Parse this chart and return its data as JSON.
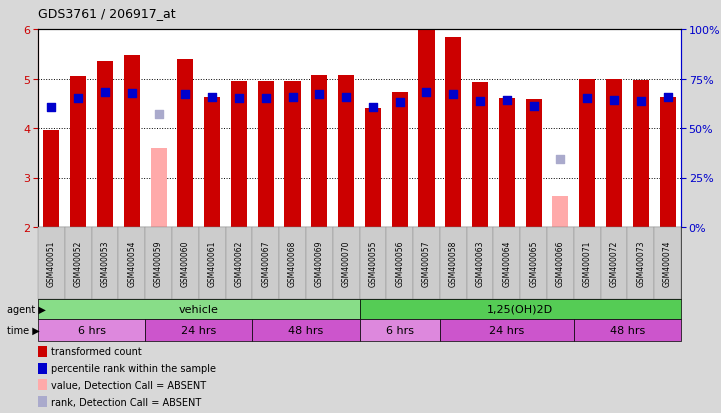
{
  "title": "GDS3761 / 206917_at",
  "ylim_left": [
    2,
    6
  ],
  "ylim_right": [
    0,
    100
  ],
  "yticks_left": [
    2,
    3,
    4,
    5,
    6
  ],
  "yticks_right": [
    0,
    25,
    50,
    75,
    100
  ],
  "ytick_labels_right": [
    "0%",
    "25%",
    "50%",
    "75%",
    "100%"
  ],
  "samples": [
    "GSM400051",
    "GSM400052",
    "GSM400053",
    "GSM400054",
    "GSM400059",
    "GSM400060",
    "GSM400061",
    "GSM400062",
    "GSM400067",
    "GSM400068",
    "GSM400069",
    "GSM400070",
    "GSM400055",
    "GSM400056",
    "GSM400057",
    "GSM400058",
    "GSM400063",
    "GSM400064",
    "GSM400065",
    "GSM400066",
    "GSM400071",
    "GSM400072",
    "GSM400073",
    "GSM400074"
  ],
  "bar_values": [
    3.95,
    5.05,
    5.35,
    5.48,
    3.6,
    5.4,
    4.62,
    4.95,
    4.95,
    4.95,
    5.08,
    5.08,
    4.4,
    4.72,
    6.02,
    5.84,
    4.93,
    4.6,
    4.58,
    2.63,
    5.0,
    5.0,
    4.96,
    4.62
  ],
  "bar_absent": [
    false,
    false,
    false,
    false,
    true,
    false,
    false,
    false,
    false,
    false,
    false,
    false,
    false,
    false,
    false,
    false,
    false,
    false,
    false,
    true,
    false,
    false,
    false,
    false
  ],
  "rank_values": [
    4.43,
    4.6,
    4.72,
    4.7,
    4.28,
    4.68,
    4.62,
    4.6,
    4.6,
    4.62,
    4.68,
    4.62,
    4.43,
    4.52,
    4.72,
    4.68,
    4.55,
    4.57,
    4.45,
    3.38,
    4.6,
    4.57,
    4.55,
    4.62
  ],
  "rank_absent": [
    false,
    false,
    false,
    false,
    true,
    false,
    false,
    false,
    false,
    false,
    false,
    false,
    false,
    false,
    false,
    false,
    false,
    false,
    false,
    true,
    false,
    false,
    false,
    false
  ],
  "bar_color_present": "#cc0000",
  "bar_color_absent": "#ffaaaa",
  "rank_color_present": "#0000cc",
  "rank_color_absent": "#aaaacc",
  "bar_width": 0.6,
  "rank_marker_size": 35,
  "agent_groups": [
    {
      "label": "vehicle",
      "start": 0,
      "end": 11,
      "color": "#88dd88"
    },
    {
      "label": "1,25(OH)2D",
      "start": 12,
      "end": 23,
      "color": "#55cc55"
    }
  ],
  "legend_items": [
    {
      "label": "transformed count",
      "color": "#cc0000"
    },
    {
      "label": "percentile rank within the sample",
      "color": "#0000cc"
    },
    {
      "label": "value, Detection Call = ABSENT",
      "color": "#ffaaaa"
    },
    {
      "label": "rank, Detection Call = ABSENT",
      "color": "#aaaacc"
    }
  ],
  "background_color": "#d8d8d8",
  "plot_bg_color": "#ffffff",
  "time_boundaries": [
    0,
    4,
    8,
    12,
    15,
    20,
    24
  ],
  "time_labels": [
    "6 hrs",
    "24 hrs",
    "48 hrs",
    "6 hrs",
    "24 hrs",
    "48 hrs"
  ],
  "time_colors": [
    "#dd88dd",
    "#cc55cc",
    "#cc55cc",
    "#dd88dd",
    "#cc55cc",
    "#cc55cc"
  ]
}
